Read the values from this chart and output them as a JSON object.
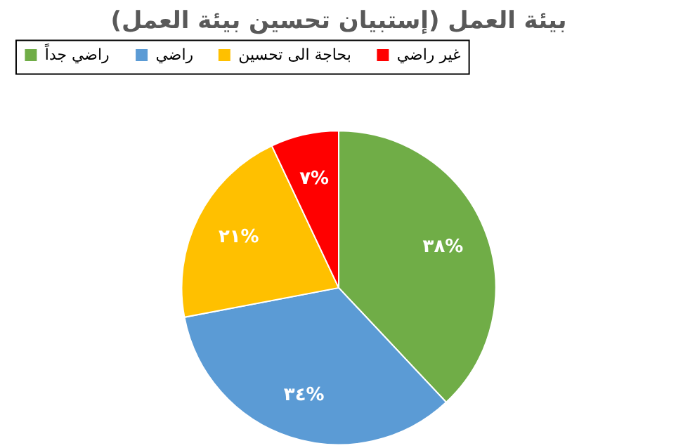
{
  "chart_data": {
    "type": "pie",
    "title": "بيئة العمل (إستبيان تحسين بيئة العمل)",
    "categories": [
      "راضي جداً",
      "راضي",
      "بحاجة الى تحسين",
      "غير راضي"
    ],
    "values": [
      38,
      34,
      21,
      7
    ],
    "colors": [
      "#70ad47",
      "#5b9bd5",
      "#ffc000",
      "#ff0000"
    ],
    "value_labels": [
      "٣٨%",
      "٣٤%",
      "٢١%",
      "٧%"
    ],
    "legend": "top"
  }
}
